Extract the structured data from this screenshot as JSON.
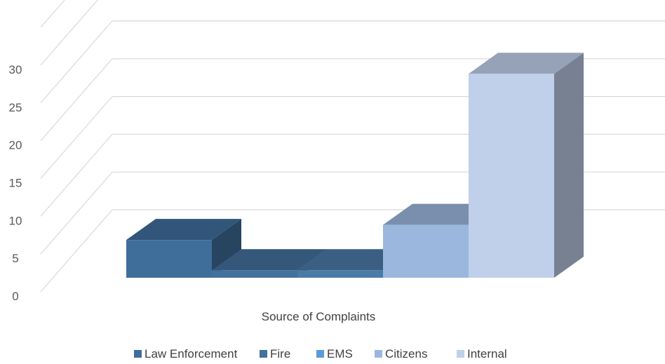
{
  "chart_data": {
    "type": "bar",
    "title": "",
    "xlabel": "Source of Complaints",
    "ylabel": "",
    "ylim": [
      0,
      35
    ],
    "ytick_step": 5,
    "grid": true,
    "three_d": true,
    "legend_position": "bottom",
    "categories": [
      "Source of Complaints"
    ],
    "series": [
      {
        "name": "Law Enforcement",
        "values": [
          5
        ],
        "color": "#3f6e9b"
      },
      {
        "name": "Fire",
        "values": [
          1
        ],
        "color": "#43709c"
      },
      {
        "name": "EMS",
        "values": [
          1
        ],
        "color": "#4a7aa8"
      },
      {
        "name": "Citizens",
        "values": [
          7
        ],
        "color": "#9bb7de"
      },
      {
        "name": "Internal",
        "values": [
          27
        ],
        "color": "#c0d0ea"
      }
    ],
    "legend_colors": [
      "#3f6e9b",
      "#43709c",
      "#5b9bd5",
      "#9bb7de",
      "#c0d0ea"
    ]
  }
}
